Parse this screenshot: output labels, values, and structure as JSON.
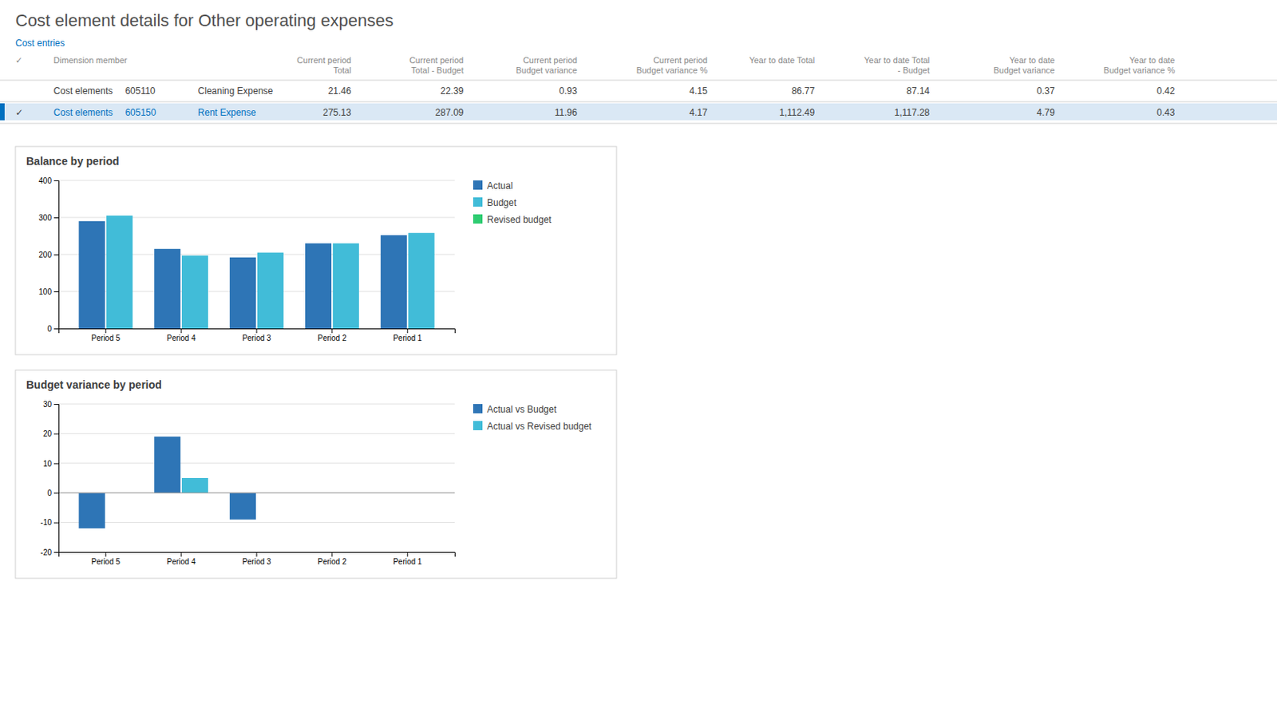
{
  "page": {
    "title": "Cost element details for Other operating expenses",
    "link": "Cost entries",
    "table": {
      "headers": [
        "✓",
        "Dimension member",
        null,
        null,
        "Current period Total",
        "Current period Total - Budget",
        "Current period Budget variance",
        "Current period Budget variance %",
        "Year to date Total",
        "Year to date Total - Budget",
        "Year to date Budget variance",
        "Year to date Budget variance %"
      ],
      "rows": [
        [
          null,
          "Cost elements",
          "605110",
          "Cleaning Expense",
          "21.46",
          "22.39",
          "0.93",
          "4.15",
          "86.77",
          "87.14",
          "0.37",
          "0.42"
        ],
        [
          "✓",
          "Cost elements",
          "605150",
          "Rent Expense",
          "275.13",
          "287.09",
          "11.96",
          "4.17",
          "1,112.49",
          "1,117.28",
          "4.79",
          "0.43"
        ]
      ]
    }
  },
  "chart_data": [
    {
      "type": "bar",
      "title": "Balance by period",
      "categories": [
        "Period 5",
        "Period 4",
        "Period 3",
        "Period 2",
        "Period 1"
      ],
      "series": [
        {
          "name": "Actual",
          "color": "#2E75B6",
          "values": [
            290,
            215,
            192,
            230,
            252
          ]
        },
        {
          "name": "Budget",
          "color": "#41BCD8",
          "values": [
            305,
            197,
            205,
            230,
            258
          ]
        },
        {
          "name": "Revised budget",
          "color": "#2ECC71",
          "values": [
            null,
            null,
            null,
            null,
            null
          ]
        }
      ],
      "ylim": [
        0,
        400
      ],
      "yticks": [
        0,
        100,
        200,
        300,
        400
      ],
      "grid": true,
      "legend": "right"
    },
    {
      "type": "bar",
      "title": "Budget variance by period",
      "categories": [
        "Period 5",
        "Period 4",
        "Period 3",
        "Period 2",
        "Period 1"
      ],
      "series": [
        {
          "name": "Actual vs Budget",
          "color": "#2E75B6",
          "values": [
            -12,
            19,
            -9,
            0,
            0
          ]
        },
        {
          "name": "Actual vs Revised budget",
          "color": "#41BCD8",
          "values": [
            0,
            5,
            0,
            0,
            0
          ]
        }
      ],
      "ylim": [
        -20,
        30
      ],
      "yticks": [
        -20,
        -10,
        0,
        10,
        20,
        30
      ],
      "grid": true,
      "legend": "right"
    }
  ]
}
